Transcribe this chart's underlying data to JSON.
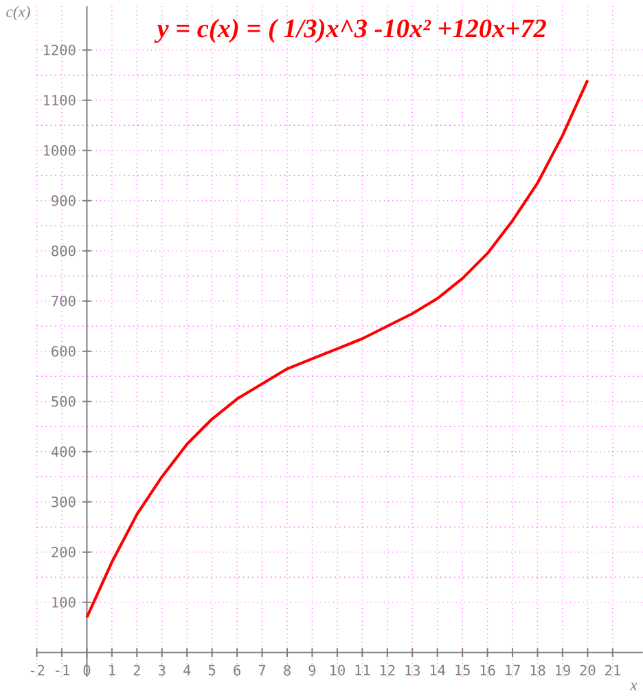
{
  "chart_data": {
    "type": "line",
    "title": "y = c(x) = ( 1/3)x^3 -10x² +120x+72",
    "xlabel": "x",
    "ylabel": "c(x)",
    "x": [
      0,
      1,
      2,
      3,
      4,
      5,
      6,
      7,
      8,
      9,
      10,
      11,
      12,
      13,
      14,
      15,
      16,
      17,
      18,
      19,
      20
    ],
    "series": [
      {
        "color": "#ff0000",
        "values": [
          70,
          180,
          275,
          350,
          415,
          465,
          505,
          535,
          565,
          585,
          605,
          625,
          650,
          675,
          705,
          745,
          795,
          860,
          935,
          1030,
          1140
        ]
      }
    ],
    "xlim": [
      -2,
      22.2
    ],
    "ylim": [
      -48,
      1287
    ],
    "xticks": [
      -2,
      -1,
      0,
      1,
      2,
      3,
      4,
      5,
      6,
      7,
      8,
      9,
      10,
      11,
      12,
      13,
      14,
      15,
      16,
      17,
      18,
      19,
      20,
      21
    ],
    "yticks": [
      100,
      200,
      300,
      400,
      500,
      600,
      700,
      800,
      900,
      1000,
      1100,
      1200
    ],
    "grid": true,
    "marker": "none",
    "line_style": "solid"
  }
}
